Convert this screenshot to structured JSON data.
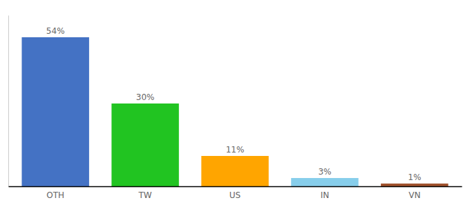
{
  "chart_data": {
    "type": "bar",
    "categories": [
      "OTH",
      "TW",
      "US",
      "IN",
      "VN"
    ],
    "values": [
      54,
      30,
      11,
      3,
      1
    ],
    "value_labels": [
      "54%",
      "30%",
      "11%",
      "3%",
      "1%"
    ],
    "colors": [
      "#4472c4",
      "#21c421",
      "#ffa500",
      "#87ceeb",
      "#a0522d"
    ],
    "ylim": [
      0,
      62
    ],
    "data_labels": true,
    "tick_labels": "x"
  }
}
